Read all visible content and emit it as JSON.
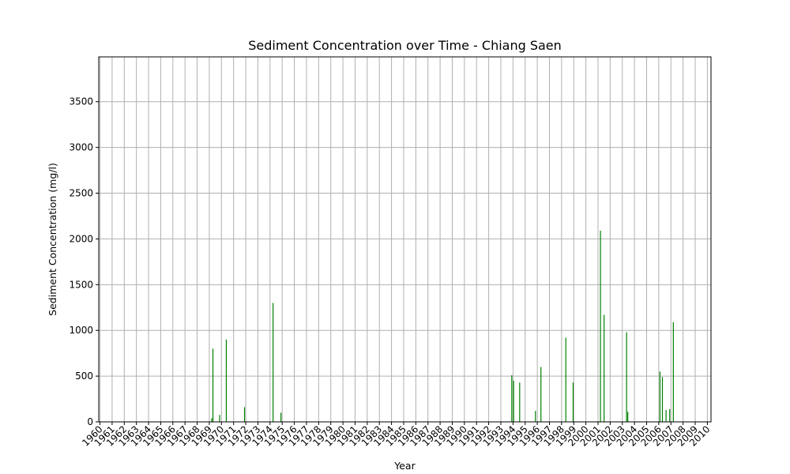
{
  "chart_data": {
    "type": "bar",
    "title": "Sediment Concentration over Time - Chiang Saen",
    "xlabel": "Year",
    "ylabel": "Sediment Concentration (mg/l)",
    "xlim": [
      1959.9,
      2010.3
    ],
    "ylim": [
      0,
      3990
    ],
    "x_ticks": [
      1960,
      1961,
      1962,
      1963,
      1964,
      1965,
      1966,
      1967,
      1968,
      1969,
      1970,
      1971,
      1972,
      1973,
      1974,
      1975,
      1976,
      1977,
      1978,
      1979,
      1980,
      1981,
      1982,
      1983,
      1984,
      1985,
      1986,
      1987,
      1988,
      1989,
      1990,
      1991,
      1992,
      1993,
      1994,
      1995,
      1996,
      1997,
      1998,
      1999,
      2000,
      2001,
      2002,
      2003,
      2004,
      2005,
      2006,
      2007,
      2008,
      2009,
      2010
    ],
    "y_ticks": [
      0,
      500,
      1000,
      1500,
      2000,
      2500,
      3000,
      3500
    ],
    "grid": true,
    "bar_color": "#008000",
    "series": [
      {
        "x": [
          1969.2,
          1969.3,
          1969.85,
          1970.4,
          1971.9,
          1974.25,
          1974.9,
          1993.9,
          1994.05,
          1994.55,
          1995.85,
          1996.3,
          1998.35,
          1998.95,
          2001.2,
          2001.5,
          2003.35,
          2003.45,
          2006.1,
          2006.3,
          2006.6,
          2006.9,
          2007.2
        ],
        "values": [
          40,
          800,
          75,
          900,
          160,
          1300,
          100,
          510,
          450,
          430,
          120,
          600,
          920,
          430,
          2090,
          1170,
          980,
          110,
          550,
          490,
          130,
          140,
          1090
        ]
      }
    ]
  }
}
